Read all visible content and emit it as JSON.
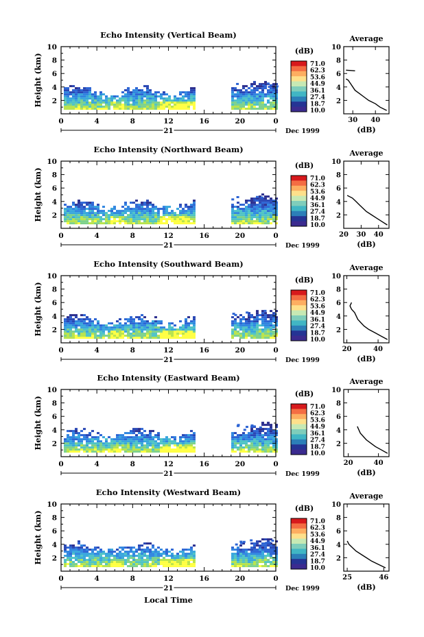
{
  "chart_data": [
    {
      "type": "heatmap",
      "title": "Echo Intensity (Vertical Beam)",
      "ylabel": "Height (km)",
      "xticks": [
        "0",
        "4",
        "8",
        "12",
        "16",
        "20",
        "0"
      ],
      "yticks": [
        "2",
        "4",
        "6",
        "8",
        "10"
      ],
      "date_day": "21",
      "date_month": "Dec 1999",
      "xlim": [
        0,
        24
      ],
      "ylim": [
        0,
        10
      ],
      "gap_hours": [
        14.8,
        18.8
      ],
      "avg_title": "Average",
      "avg_xticks": [
        "30",
        "40"
      ],
      "avg_xlabel": "(dB)",
      "avg_xlim": [
        26,
        46
      ],
      "avg_profile": [
        [
          45,
          0.5
        ],
        [
          42,
          1.0
        ],
        [
          40,
          1.5
        ],
        [
          37,
          2.0
        ],
        [
          35,
          2.5
        ],
        [
          33,
          3.0
        ],
        [
          31,
          3.5
        ],
        [
          30,
          4.0
        ],
        [
          29,
          4.5
        ],
        [
          28,
          5.0
        ],
        [
          27,
          5.2
        ]
      ],
      "avg_upper": [
        [
          27,
          6.5
        ],
        [
          31,
          6.4
        ]
      ]
    },
    {
      "type": "heatmap",
      "title": "Echo Intensity (Northward Beam)",
      "ylabel": "Height (km)",
      "xticks": [
        "0",
        "4",
        "8",
        "12",
        "16",
        "20",
        "0"
      ],
      "yticks": [
        "2",
        "4",
        "6",
        "8",
        "10"
      ],
      "date_day": "21",
      "date_month": "Dec 1999",
      "xlim": [
        0,
        24
      ],
      "ylim": [
        0,
        10
      ],
      "gap_hours": [
        14.8,
        18.8
      ],
      "avg_title": "Average",
      "avg_xticks": [
        "20",
        "30",
        "40"
      ],
      "avg_xlabel": "(dB)",
      "avg_xlim": [
        20,
        46
      ],
      "avg_profile": [
        [
          45,
          0.5
        ],
        [
          42,
          1.0
        ],
        [
          39,
          1.5
        ],
        [
          36,
          2.0
        ],
        [
          33,
          2.5
        ],
        [
          31,
          3.0
        ],
        [
          29,
          3.5
        ],
        [
          27,
          4.0
        ],
        [
          25,
          4.5
        ],
        [
          22,
          4.9
        ]
      ]
    },
    {
      "type": "heatmap",
      "title": "Echo Intensity (Southward Beam)",
      "ylabel": "Height (km)",
      "xticks": [
        "0",
        "4",
        "8",
        "12",
        "16",
        "20",
        "0"
      ],
      "yticks": [
        "2",
        "4",
        "6",
        "8",
        "10"
      ],
      "date_day": "21",
      "date_month": "Dec 1999",
      "xlim": [
        0,
        24
      ],
      "ylim": [
        0,
        10
      ],
      "gap_hours": [
        14.8,
        18.8
      ],
      "avg_title": "Average",
      "avg_xticks": [
        "20",
        "40"
      ],
      "avg_xlabel": "(dB)",
      "avg_xlim": [
        18,
        47
      ],
      "avg_profile": [
        [
          46,
          0.5
        ],
        [
          42,
          1.0
        ],
        [
          38,
          1.5
        ],
        [
          34,
          2.0
        ],
        [
          31,
          2.5
        ],
        [
          29,
          3.0
        ],
        [
          27,
          3.5
        ],
        [
          26,
          4.0
        ],
        [
          25,
          4.5
        ],
        [
          23,
          5.0
        ],
        [
          22,
          5.5
        ],
        [
          23,
          6.0
        ]
      ]
    },
    {
      "type": "heatmap",
      "title": "Echo Intensity (Eastward Beam)",
      "ylabel": "Height (km)",
      "xticks": [
        "0",
        "4",
        "8",
        "12",
        "16",
        "20",
        "0"
      ],
      "yticks": [
        "2",
        "4",
        "6",
        "8",
        "10"
      ],
      "date_day": "21",
      "date_month": "Dec 1999",
      "xlim": [
        0,
        24
      ],
      "ylim": [
        0,
        10
      ],
      "gap_hours": [
        14.8,
        18.8
      ],
      "avg_title": "Average",
      "avg_xticks": [
        "20",
        "40"
      ],
      "avg_xlabel": "(dB)",
      "avg_xlim": [
        17,
        47
      ],
      "avg_profile": [
        [
          46,
          0.5
        ],
        [
          42,
          1.0
        ],
        [
          38,
          1.5
        ],
        [
          35,
          2.0
        ],
        [
          32,
          2.5
        ],
        [
          30,
          3.0
        ],
        [
          28,
          3.5
        ],
        [
          27,
          4.0
        ],
        [
          26,
          4.5
        ]
      ]
    },
    {
      "type": "heatmap",
      "title": "Echo Intensity (Westward Beam)",
      "ylabel": "Height (km)",
      "xticks": [
        "0",
        "4",
        "8",
        "12",
        "16",
        "20",
        "0"
      ],
      "yticks": [
        "2",
        "4",
        "6",
        "8",
        "10"
      ],
      "date_day": "21",
      "date_month": "Dec 1999",
      "xlim": [
        0,
        24
      ],
      "ylim": [
        0,
        10
      ],
      "gap_hours": [
        14.8,
        18.8
      ],
      "avg_title": "Average",
      "avg_xticks": [
        "25",
        "46"
      ],
      "avg_xlabel": "(dB)",
      "avg_xlim": [
        23,
        49
      ],
      "avg_profile": [
        [
          47,
          0.5
        ],
        [
          43,
          1.0
        ],
        [
          39,
          1.5
        ],
        [
          36,
          2.0
        ],
        [
          33,
          2.5
        ],
        [
          30,
          3.0
        ],
        [
          28,
          3.5
        ],
        [
          26,
          4.0
        ],
        [
          25,
          4.5
        ]
      ]
    }
  ],
  "colorbar": {
    "unit": "(dB)",
    "labels": [
      "71.0",
      "62.3",
      "53.6",
      "44.9",
      "36.1",
      "27.4",
      "18.7",
      "10.0"
    ],
    "colors": [
      "#d7191c",
      "#f46d43",
      "#fdae61",
      "#fee08b",
      "#c7e9b4",
      "#7fcdbb",
      "#41b6c4",
      "#2c7fb8",
      "#253494",
      "#3b2b8f"
    ]
  },
  "xlabel": "Local Time"
}
